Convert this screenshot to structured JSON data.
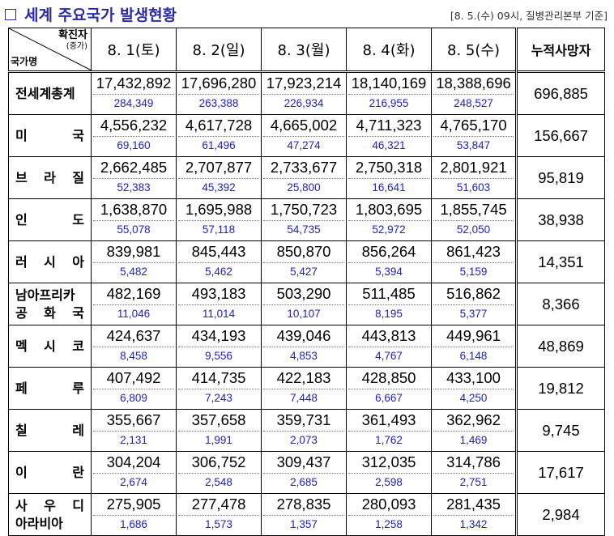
{
  "header": {
    "title": "세계 주요국가 발생현황",
    "basis": "[8. 5.(수) 09시, 질병관리본부 기준]"
  },
  "table": {
    "corner": {
      "top": "확진자",
      "sub": "(증가)",
      "bottom": "국가명"
    },
    "dates": [
      "8. 1(토)",
      "8. 2(일)",
      "8. 3(월)",
      "8. 4(화)",
      "8. 5(수)"
    ],
    "cumulative_header": "누적사망자",
    "rows": [
      {
        "name": [
          "전세계총계"
        ],
        "totals": [
          "17,432,892",
          "17,696,280",
          "17,923,214",
          "18,140,169",
          "18,388,696"
        ],
        "increases": [
          "284,349",
          "263,388",
          "226,934",
          "216,955",
          "248,527"
        ],
        "deaths": "696,885"
      },
      {
        "name": [
          "미 국"
        ],
        "totals": [
          "4,556,232",
          "4,617,728",
          "4,665,002",
          "4,711,323",
          "4,765,170"
        ],
        "increases": [
          "69,160",
          "61,496",
          "47,274",
          "46,321",
          "53,847"
        ],
        "deaths": "156,667"
      },
      {
        "name": [
          "브 라 질"
        ],
        "totals": [
          "2,662,485",
          "2,707,877",
          "2,733,677",
          "2,750,318",
          "2,801,921"
        ],
        "increases": [
          "52,383",
          "45,392",
          "25,800",
          "16,641",
          "51,603"
        ],
        "deaths": "95,819"
      },
      {
        "name": [
          "인 도"
        ],
        "totals": [
          "1,638,870",
          "1,695,988",
          "1,750,723",
          "1,803,695",
          "1,855,745"
        ],
        "increases": [
          "55,078",
          "57,118",
          "54,735",
          "52,972",
          "52,050"
        ],
        "deaths": "38,938"
      },
      {
        "name": [
          "러 시 아"
        ],
        "totals": [
          "839,981",
          "845,443",
          "850,870",
          "856,264",
          "861,423"
        ],
        "increases": [
          "5,482",
          "5,462",
          "5,427",
          "5,394",
          "5,159"
        ],
        "deaths": "14,351"
      },
      {
        "name": [
          "남아프리카",
          "공 화 국"
        ],
        "totals": [
          "482,169",
          "493,183",
          "503,290",
          "511,485",
          "516,862"
        ],
        "increases": [
          "11,046",
          "11,014",
          "10,107",
          "8,195",
          "5,377"
        ],
        "deaths": "8,366"
      },
      {
        "name": [
          "멕 시 코"
        ],
        "totals": [
          "424,637",
          "434,193",
          "439,046",
          "443,813",
          "449,961"
        ],
        "increases": [
          "8,458",
          "9,556",
          "4,853",
          "4,767",
          "6,148"
        ],
        "deaths": "48,869"
      },
      {
        "name": [
          "페 루"
        ],
        "totals": [
          "407,492",
          "414,735",
          "422,183",
          "428,850",
          "433,100"
        ],
        "increases": [
          "6,809",
          "7,243",
          "7,448",
          "6,667",
          "4,250"
        ],
        "deaths": "19,812"
      },
      {
        "name": [
          "칠 레"
        ],
        "totals": [
          "355,667",
          "357,658",
          "359,731",
          "361,493",
          "362,962"
        ],
        "increases": [
          "2,131",
          "1,991",
          "2,073",
          "1,762",
          "1,469"
        ],
        "deaths": "9,745"
      },
      {
        "name": [
          "이 란"
        ],
        "totals": [
          "304,204",
          "306,752",
          "309,437",
          "312,035",
          "314,786"
        ],
        "increases": [
          "2,674",
          "2,548",
          "2,685",
          "2,598",
          "2,751"
        ],
        "deaths": "17,617"
      },
      {
        "name": [
          "사 우 디",
          "아라비아"
        ],
        "totals": [
          "275,905",
          "277,478",
          "278,835",
          "280,093",
          "281,435"
        ],
        "increases": [
          "1,686",
          "1,573",
          "1,357",
          "1,258",
          "1,342"
        ],
        "deaths": "2,984"
      }
    ]
  }
}
